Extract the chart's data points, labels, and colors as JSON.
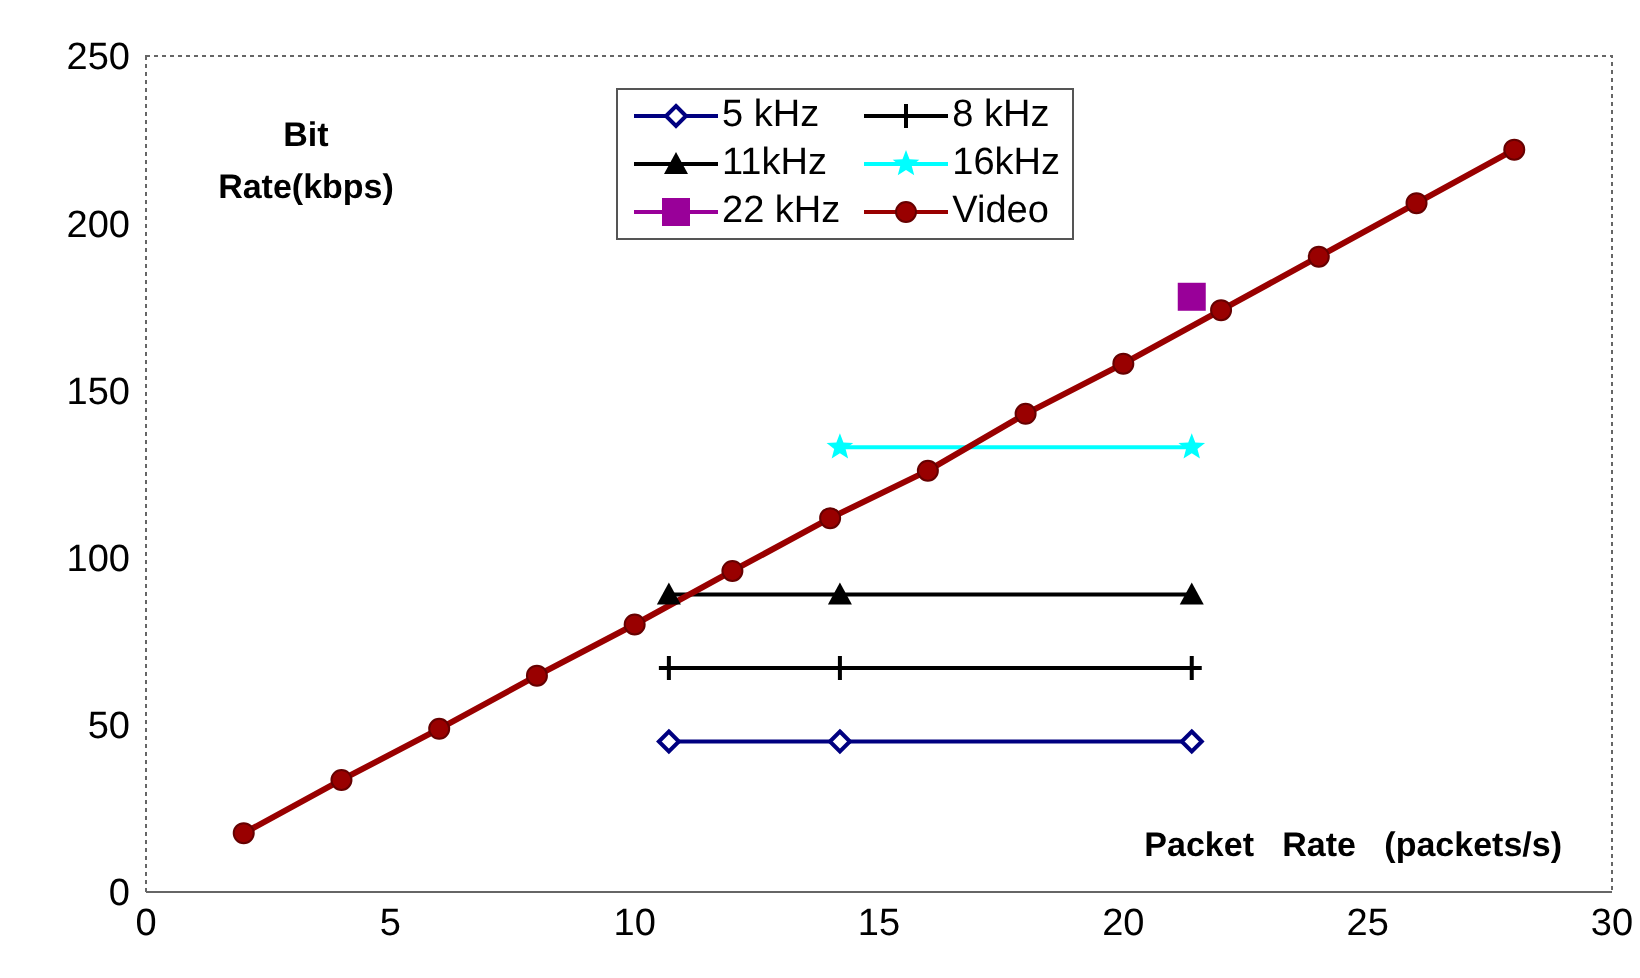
{
  "chart_data": {
    "type": "line",
    "xlabel": "Packet   Rate   (packets/s)",
    "ylabel": "Bit Rate(kbps)",
    "xlim": [
      0,
      30
    ],
    "xticks": [
      0,
      5,
      10,
      15,
      20,
      25,
      30
    ],
    "ylim": [
      0,
      250
    ],
    "yticks": [
      0,
      50,
      100,
      150,
      200,
      250
    ],
    "grid": false,
    "legend": "top",
    "series": [
      {
        "name": "5 kHz",
        "color": "#000080",
        "marker": "diamond",
        "x": [
          10.7,
          14.2,
          21.4
        ],
        "values": [
          45,
          45,
          45
        ]
      },
      {
        "name": "8 kHz",
        "color": "#000000",
        "marker": "cross",
        "x": [
          10.7,
          14.2,
          21.4
        ],
        "values": [
          67,
          67,
          67
        ]
      },
      {
        "name": "11kHz",
        "color": "#000000",
        "marker": "triangle",
        "x": [
          10.7,
          14.2,
          21.4
        ],
        "values": [
          89,
          89,
          89
        ]
      },
      {
        "name": "16kHz",
        "color": "#00ffff",
        "marker": "star",
        "x": [
          14.2,
          21.4
        ],
        "values": [
          133,
          133
        ]
      },
      {
        "name": "22 kHz",
        "color": "#990099",
        "marker": "square",
        "x": [
          21.4
        ],
        "values": [
          178
        ]
      },
      {
        "name": "Video",
        "color": "#990000",
        "marker": "circle",
        "x": [
          2,
          4,
          6,
          8,
          10,
          12,
          14,
          16,
          18,
          20,
          22,
          24,
          26,
          28
        ],
        "values": [
          17.6,
          33.5,
          48.8,
          64.7,
          80,
          96,
          111.8,
          126,
          143,
          158,
          174,
          190,
          206,
          222
        ]
      }
    ]
  }
}
